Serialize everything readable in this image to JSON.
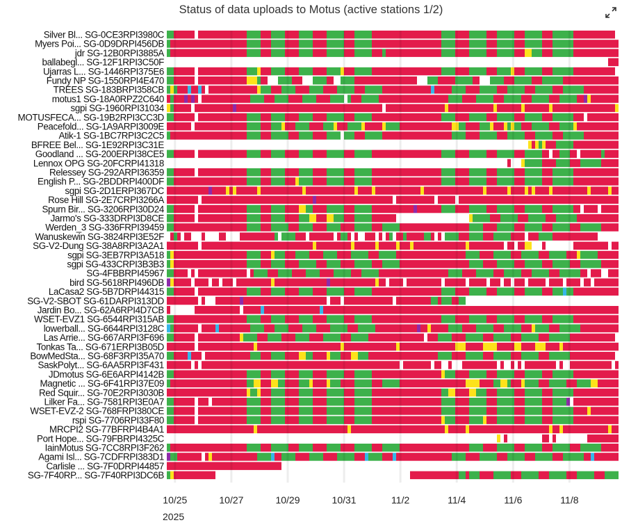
{
  "chart_data": {
    "type": "timeline",
    "title": "Status of data uploads to Motus (active stations 1/2)",
    "time_start": "2025-10-24T17:00",
    "bin_hours": 2.96,
    "status_colors": {
      "R": "#e31b4b",
      "G": "#3db14b",
      "Y": "#fde21b",
      "B": "#36b7e8",
      "P": "#8e2aa9"
    },
    "x_ticks": [
      {
        "label": "10/25",
        "date": "2025-10-25"
      },
      {
        "label": "10/27",
        "date": "2025-10-27"
      },
      {
        "label": "10/29",
        "date": "2025-10-29"
      },
      {
        "label": "10/31",
        "date": "2025-10-31"
      },
      {
        "label": "11/2",
        "date": "2025-11-02"
      },
      {
        "label": "11/4",
        "date": "2025-11-04"
      },
      {
        "label": "11/6",
        "date": "2025-11-06"
      },
      {
        "label": "11/8",
        "date": "2025-11-08"
      }
    ],
    "year_label": "2025",
    "rows": [
      {
        "label": "Silver Bl... SG-0CE3RPI3980C",
        "seg": "G2R6W1R14G4R3G4R4G4R4G5R3G5R20G4R4G5R3G5R3G5R3G6R12W1"
      },
      {
        "label": "Myers Poi... SG-0D9DRPI456DB",
        "seg": "G1R22G4R3G4R4G4R4G5R3G5R20G4R4G5R3G5R3G5R3G6R13"
      },
      {
        "label": "jdr SG-12B0RPI3885A",
        "seg": "G1R22G4R3G4R4G4R4G5R3G5R3G1R16G4R4G5R3G5R3Y2G3R3G6R13"
      },
      {
        "label": "ballabegl... SG-12F1RPI3C50F",
        "seg": "W127R3"
      },
      {
        "label": "Ujarras L... SG-1446RPI375E6",
        "seg": "G2R6W1R14G3Y1R3G4R4G4R4G4Y1R3G5R20G4R4G5R3G4Y1R3G5R3G6R12W1"
      },
      {
        "label": "Fundy NP SG-1550RPI4E470",
        "seg": "G2R6W1R14Y3G1R2W3G4R3W3G4R2W2G4R18W3G3R5G5R2W3G4R3G5R3G6R16"
      },
      {
        "label": "TREES SG-183BRPI358CB",
        "seg": "G1Y1G1R3B1R2B1R1W1R14Y1G3R3G4R4G4R4G5R3G5R14B1R5G4R4G5R3G5R3G5R3G6R12B1R1"
      },
      {
        "label": "motus1 SG-18A0RPZ2C640",
        "seg": "R1G1R3P1R1P1R1W1R14G4R3G4R4G4R4G4W1G1R3G5R20G4R4G5R3G5R3G5R3G5R2P1Y1R10"
      },
      {
        "label": "sgpi SG-1960RPI31034",
        "seg": "Y1G1R5W1R11P1R42W1R17Y1R13Y1R7Y1R7Y1R18Y1R2"
      },
      {
        "label": "MOTUSFECA... SG-19B2RPI3CC3D",
        "seg": "G2R6W1R14G4R3G4R4G4R4G5R3G5R20G4R4G5R3G5R3G5R3G6R3W1R9"
      },
      {
        "label": "Peacefold... SG-1A9ARPI3009E",
        "seg": "R7W1R15G4R3G3Y1R3G4R4G3Y1R3G4Y1R5Y1G4R15Y2G2R4G3Y1R3Y1G1Y1G2R3G5R3G4Y1R13"
      },
      {
        "label": "Atik-1 SG-1BC7RPI3C2C5",
        "seg": "G1R22G4R3G5R3G4R4G4W1G3R3G5R20G4R4G5R3G5R3G5R3G6R13"
      },
      {
        "label": "BFREE Bel... SG-1E92RPI3C31E",
        "seg": "W104Y1R1Y1G1Y1R3G5R14"
      },
      {
        "label": "Goodland ... SG-200ERPI38CE5",
        "seg": "G2R6W1R14G4R3G4R4G4R4G5R3G5R20G4R4G5R3G5R3G5R2W1R2G3R2W1R6G1R4"
      },
      {
        "label": "Lennox OPG SG-20FCRPI41318",
        "seg": "W98R1W3Y1G5R4G4R3G6R5"
      },
      {
        "label": "Relessey SG-292ARPI36359",
        "seg": "G2R6W1R14G4R3G4R4G4R4G5R3G5R20G4R4G5R3G5R3G5R3G6R13"
      },
      {
        "label": "English P... SG-2BDDRPI400DF",
        "seg": "G2R21G4R3G4R3Y1G4R4G5R3G5R20G4R4G5R3G5R3G5R3G6R13"
      },
      {
        "label": "sgpi SG-2D1ERPI367DC",
        "seg": "R12P1R4Y1R1Y1R6Y1R12Y1R14Y1R4Y1R13Y1R17Y1R6Y1R4Y1R1Y1R4Y1R10Y1R5Y1R3"
      },
      {
        "label": "Rose Hill SG-2E7CRPI3266A",
        "seg": "R9W1R32P1R22W1R11W1R5W1R47"
      },
      {
        "label": "Spurn Bir... SG-3206RPI30D24",
        "seg": "G2R6W1R14G4R3G4R4Y2G2R4G5R3G5R12P1R7G4R4G5R3G5R3G5R3G6R2W1R4W1R5"
      },
      {
        "label": "Jarmo's SG-333DRPI3D8CE",
        "seg": "G2R6W1R14G4R3G4R4G3Y2R3Y2G3R3G5R7W21Y1G5R3G5R3G5R3G6R13"
      },
      {
        "label": "Werden_3 SG-336FRPI39459",
        "seg": "G2R21G4R3G5R3G4R4G4R4G5R3G5R20G4R4G5R3G5R3G5R3G6R13"
      },
      {
        "label": "Wanuskewin SG-3824RPI3E52F",
        "seg": "W1R1G1R1W1R2W3R1W4R2W4R10G1W1G4R3W1R7W1R1G2R1W1R1W2R3W1R1W1R1G1W1R2G1R5G2R1W1R1W1G4R3G4R3G5R4W1R3G4R13"
      },
      {
        "label": "SG-V2-Dung SG-38A8RPI3A2A1",
        "seg": "R9W1R32Y1R10Y1R6Y1R5Y1R3Y1R15Y1R10W1R2W1R2Y2W3R1W8R10W1R10"
      },
      {
        "label": "sgpi SG-3EB7RPI3A518",
        "seg": "G1Y1R21G4R3Y1G3R3G4R4G4R4G5R3G5R20G4R4G5R3G5R3G5R3Y1G5R13"
      },
      {
        "label": "sgpi SG-433CRPI3B3B3",
        "seg": "G1Y1R21G4R3G4R4G5R3G4R4G5R3G5R20G4R4G5R3G5R3G5R3G6R13"
      },
      {
        "label": "SG-4FBBRPI45967",
        "seg": "G2R4W1R1W1R14W1R1G4R3G4R4G4R4G5R3G5R20G4R4G5R3G5R3G5R3G6R2W1R3W2R4"
      },
      {
        "label": "bird SG-5618RPI496DB",
        "seg": "P1Y1R5W1R4W1R2W1R3W1R10Y1R15P1R13Y1R2W1R4W1R10W1R6W1R5W1R3W1R2W1R3W1R5W1R4W1R4W1R2W1R11"
      },
      {
        "label": "LaCasa2 SG-5B7DRPI44315",
        "seg": "G2R6W1R14G4R3G4R4G4R4G5R3G5R20G4R4G5R3G5R3G5R3G3B1G2R13"
      },
      {
        "label": "SG-V2-SBOT SG-61DARPI313DD",
        "seg": "R9W1R1W3R7P1R24W1R3W1R14W1R10G2R1G3R2G2W48"
      },
      {
        "label": "Jardin Bo... SG-62A6RPI4D7CB",
        "seg": "R1W7R13W1R5B1R16B1R85"
      },
      {
        "label": "WSET-EVZ1 SG-6544RPI315AB",
        "seg": "G2R21G4R3G4R4G4R4G5R3G5R20G4R4G5R3G5R3G5R3G6R13"
      },
      {
        "label": "lowerball... SG-6644RPI3128C",
        "seg": "B1G1R7W1R4B1R9G4R3G4R4G4R4G5R3G5R12P1R2Y1R5G4R4G5R3G5R3Y1G4R3G6R12B1R1"
      },
      {
        "label": "Las Arrie... SG-667ARPI3F696",
        "seg": "G2R6W1R12Y1G4R3G4R4G4R4G5R3G5R16W1R3G4R4G5R3G5R3G5R3G6R13"
      },
      {
        "label": "Tonkas Ta... SG-671ERPI3B05D",
        "seg": "R8W1R16Y1R24Y1R15Y1R16Y3R5Y4R5Y2R4Y3R4Y1R21"
      },
      {
        "label": "BowMedSta... SG-68F3RPI35A70",
        "seg": "G2R4B1R3W1R13G3R3G4R4Y2G2R4Y1G3R3Y2G3R20G4R4G5R3G5R3G5R3G6R13"
      },
      {
        "label": "SaskPolyt... SG-6AA5RPI3F431",
        "seg": "R7W1R1W1R57W1R8W1R2W2R1W3R10W1R1W2R1W1R1W1R9W1R1W2R12W1R3"
      },
      {
        "label": "JDmotus SG-6E6ARPI4142B",
        "seg": "G2R21G4R3G4R4G4R4G5R3G5R20Y1G3R4G5R3G5R3G5R3G6R13"
      },
      {
        "label": "Magnetic ... SG-6F41RPI37E09",
        "seg": "G1R22G2Y2R3Y2G2R4G3Y1R4Y1G3R4G5R3G5R19Y4R4G2Y2G1R3Y1G4R3G5R3G4Y2R13"
      },
      {
        "label": "Red Squir... SG-70E2RPI3030B",
        "seg": "R23Y1G2Y1R3G4R4G4R4G5R3G5R20G2Y2R4Y2G3R3G5R3G5R3G6R13"
      },
      {
        "label": "Lilker Fa... SG-7581RPI3E0A7",
        "seg": "G2R6W1R3W1R10G4R3G4R4G4R4G5R3G5R20G4R4G5R3G5R3G5R3G4P1W1R13"
      },
      {
        "label": "WSET-EVZ-2 SG-768FRPI380CE",
        "seg": "G2R6W1R14G4R3G4R4G4R4G5R3G5R20G4R4G5R3G5R3G5R3G6R4Y1R8"
      },
      {
        "label": "rspi SG-7706RPI33F80",
        "seg": "G2R6W1R14G4R3G4R4G4R4G5R3G5R20Y1G3R4G4Y1R3G5R3G5R3G6R13"
      },
      {
        "label": "MRCPI2 SG-77BFRPI4B4A1",
        "seg": "R25Y1R26Y1R27Y1R5Y1R23Y1R2Y1R13Y1R3"
      },
      {
        "label": "Port Hope... SG-79FBRPI4325C",
        "seg": "W95Y1W1R1W10R2W1R1W9R10"
      },
      {
        "label": "IainMotus SG-7CC8RPI3F262",
        "seg": "G1R22G4R3G5R3G4R4G4R4G5R3G5R20G4R4G5R3G5R3G5R3G6R13"
      },
      {
        "label": "Agami Isl... SG-7CDFRPI383D1",
        "seg": "P1G2R7W1R1Y1R13G4B1R2G4R4G4R4G5R3B1G4R3B1R16G4R4G5R3G5R3G5R3G6R2B1R10"
      },
      {
        "label": "Carlisle ... SG-7F0DRPI44857",
        "seg": "R33W97"
      },
      {
        "label": "SG-7F40RP... SG-7F40RPI3DC6B",
        "seg": "G1Y1R12W56R14G2R1G3R4G5R3G5R3G5R3G5R3G6R13"
      }
    ]
  },
  "toolbar": {
    "expand_label": "expand"
  }
}
